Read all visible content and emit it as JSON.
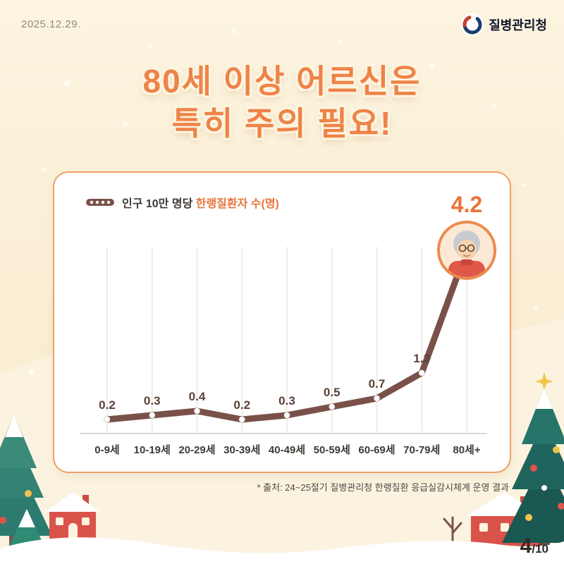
{
  "header": {
    "date": "2025.12.29.",
    "agency_name": "질병관리청"
  },
  "title": {
    "line1": "80세 이상 어르신은",
    "line2": "특히 주의 필요!"
  },
  "chart_card": {
    "legend_prefix": "인구 10만 명당 ",
    "legend_highlight": "한랭질환자 수(명)"
  },
  "chart_data": {
    "type": "line",
    "title": "인구 10만 명당 한랭질환자 수(명)",
    "categories": [
      "0-9세",
      "10-19세",
      "20-29세",
      "30-39세",
      "40-49세",
      "50-59세",
      "60-69세",
      "70-79세",
      "80세+"
    ],
    "values": [
      0.2,
      0.3,
      0.4,
      0.2,
      0.3,
      0.5,
      0.7,
      1.3,
      4.2
    ],
    "ylim": [
      0,
      4.5
    ],
    "grid": "vertical",
    "legend_position": "top-left",
    "line_color": "#7A5149",
    "value_label_color": "#5A4036",
    "highlight_index": 8,
    "highlight_color": "#E8743C"
  },
  "footnote": "* 출처: 24~25절기 질병관리청 한랭질환 응급실감시체계 운영 결과",
  "page_indicator": {
    "current": "4",
    "total": "/10"
  },
  "colors": {
    "accent_orange": "#EE8348",
    "card_border": "#EDA06A",
    "line_brown": "#7A5149",
    "tree_teal": "#2D7A6E",
    "house_red": "#D9534A"
  }
}
